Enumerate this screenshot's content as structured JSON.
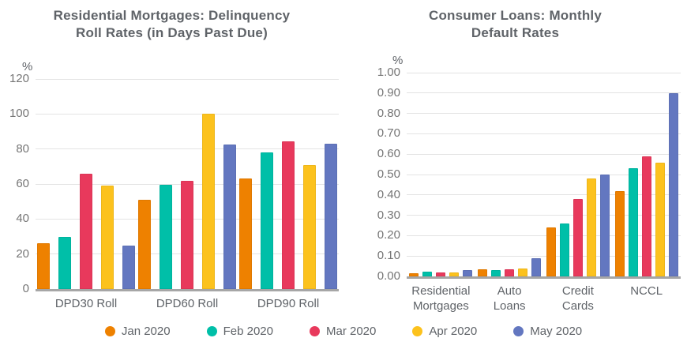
{
  "page": {
    "background": "#ffffff"
  },
  "chart_data": [
    {
      "type": "bar",
      "title": "Residential Mortgages: Delinquency Roll Rates (in Days Past Due)",
      "title_lines": [
        "Residential Mortgages: Delinquency",
        "Roll Rates (in Days Past Due)"
      ],
      "ylabel": "%",
      "ylim": [
        0,
        120
      ],
      "grid": true,
      "legend_position": "bottom-shared",
      "yticks": [
        {
          "value": 0,
          "label": "0"
        },
        {
          "value": 20,
          "label": "20"
        },
        {
          "value": 40,
          "label": "40"
        },
        {
          "value": 60,
          "label": "60"
        },
        {
          "value": 80,
          "label": "80"
        },
        {
          "value": 100,
          "label": "100"
        },
        {
          "value": 120,
          "label": "120"
        }
      ],
      "categories": [
        {
          "id": "dpd30-roll",
          "lines": [
            "DPD30 Roll"
          ]
        },
        {
          "id": "dpd60-roll",
          "lines": [
            "DPD60 Roll"
          ]
        },
        {
          "id": "dpd90-roll",
          "lines": [
            "DPD90 Roll"
          ]
        }
      ],
      "series": [
        {
          "name": "Jan 2020",
          "color": "#EE8100",
          "values": [
            26,
            51,
            63
          ]
        },
        {
          "name": "Feb 2020",
          "color": "#00BFA8",
          "values": [
            30,
            59.5,
            78
          ]
        },
        {
          "name": "Mar 2020",
          "color": "#E8395C",
          "values": [
            66,
            62,
            84.5
          ]
        },
        {
          "name": "Apr 2020",
          "color": "#FCC21D",
          "values": [
            59,
            100,
            71
          ]
        },
        {
          "name": "May 2020",
          "color": "#6377C0",
          "values": [
            25,
            82.5,
            83
          ]
        }
      ]
    },
    {
      "type": "bar",
      "title": "Consumer Loans: Monthly Default Rates",
      "title_lines": [
        "Consumer Loans: Monthly",
        "Default Rates"
      ],
      "ylabel": "%",
      "ylim": [
        0,
        1.0
      ],
      "grid": true,
      "legend_position": "bottom-shared",
      "yticks": [
        {
          "value": 0.0,
          "label": "0.00"
        },
        {
          "value": 0.1,
          "label": "0.10"
        },
        {
          "value": 0.2,
          "label": "0.20"
        },
        {
          "value": 0.3,
          "label": "0.30"
        },
        {
          "value": 0.4,
          "label": "0.40"
        },
        {
          "value": 0.5,
          "label": "0.50"
        },
        {
          "value": 0.6,
          "label": "0.60"
        },
        {
          "value": 0.7,
          "label": "0.70"
        },
        {
          "value": 0.8,
          "label": "0.80"
        },
        {
          "value": 0.9,
          "label": "0.90"
        },
        {
          "value": 1.0,
          "label": "1.00"
        }
      ],
      "categories": [
        {
          "id": "residential-mortgages",
          "lines": [
            "Residential",
            "Mortgages"
          ]
        },
        {
          "id": "auto-loans",
          "lines": [
            "Auto",
            "Loans"
          ]
        },
        {
          "id": "credit-cards",
          "lines": [
            "Credit",
            "Cards"
          ]
        },
        {
          "id": "nccl",
          "lines": [
            "NCCL"
          ]
        }
      ],
      "series": [
        {
          "name": "Jan 2020",
          "color": "#EE8100",
          "values": [
            0.015,
            0.035,
            0.24,
            0.42
          ]
        },
        {
          "name": "Feb 2020",
          "color": "#00BFA8",
          "values": [
            0.025,
            0.03,
            0.26,
            0.53
          ]
        },
        {
          "name": "Mar 2020",
          "color": "#E8395C",
          "values": [
            0.02,
            0.035,
            0.38,
            0.59
          ]
        },
        {
          "name": "Apr 2020",
          "color": "#FCC21D",
          "values": [
            0.02,
            0.04,
            0.48,
            0.56
          ]
        },
        {
          "name": "May 2020",
          "color": "#6377C0",
          "values": [
            0.03,
            0.09,
            0.5,
            0.9
          ]
        }
      ]
    }
  ],
  "legend": {
    "items": [
      {
        "label": "Jan 2020",
        "color": "#EE8100"
      },
      {
        "label": "Feb 2020",
        "color": "#00BFA8"
      },
      {
        "label": "Mar 2020",
        "color": "#E8395C"
      },
      {
        "label": "Apr 2020",
        "color": "#FCC21D"
      },
      {
        "label": "May 2020",
        "color": "#6377C0"
      }
    ]
  }
}
